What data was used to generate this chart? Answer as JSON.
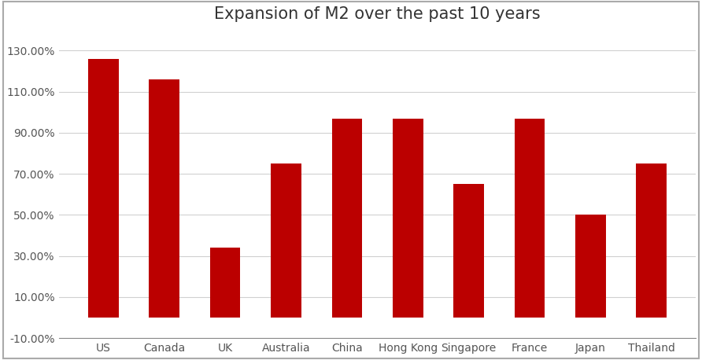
{
  "title": "Expansion of M2 over the past 10 years",
  "categories": [
    "US",
    "Canada",
    "UK",
    "Australia",
    "China",
    "Hong Kong",
    "Singapore",
    "France",
    "Japan",
    "Thailand"
  ],
  "values": [
    126,
    116,
    34,
    75,
    97,
    97,
    65,
    97,
    50,
    75
  ],
  "bar_color": "#bb0000",
  "background_color": "#ffffff",
  "ylim": [
    -10,
    140
  ],
  "yticks": [
    -10,
    10,
    30,
    50,
    70,
    90,
    110,
    130
  ],
  "ytick_labels": [
    "-10.00%",
    "10.00%",
    "30.00%",
    "50.00%",
    "70.00%",
    "90.00%",
    "110.00%",
    "130.00%"
  ],
  "title_fontsize": 15,
  "tick_fontsize": 10,
  "grid_color": "#d0d0d0",
  "outer_border_color": "#aaaaaa",
  "bar_width": 0.5
}
